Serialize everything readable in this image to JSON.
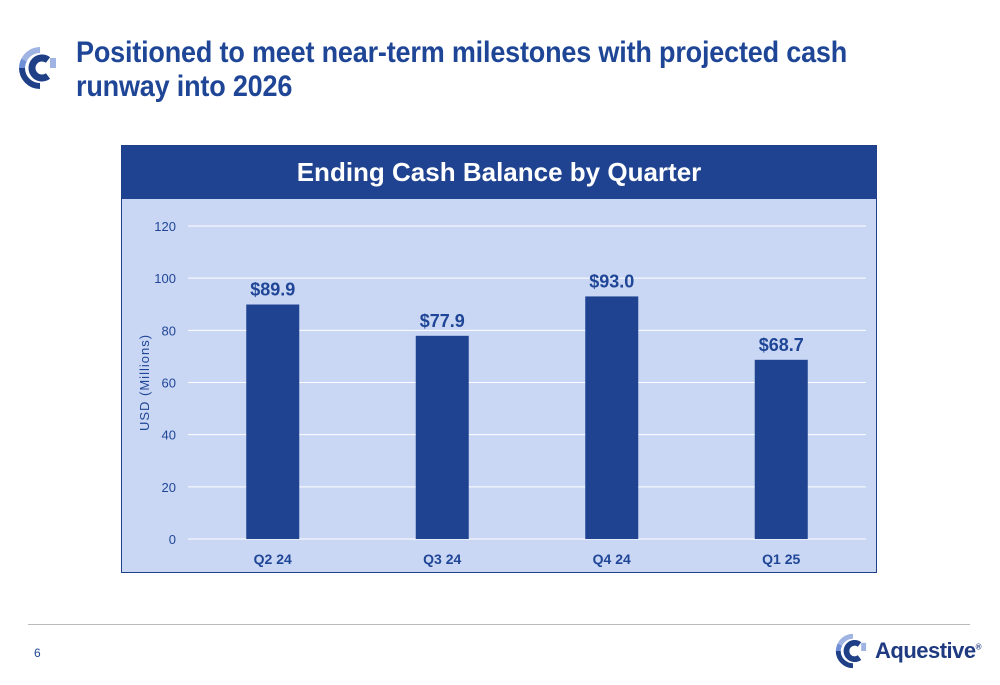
{
  "slide": {
    "title": "Positioned to meet near-term milestones with projected cash runway into 2026",
    "page_number": "6"
  },
  "brand": {
    "name": "Aquestive",
    "registered_mark": "®",
    "logo_icon": "aquestive-logo-icon"
  },
  "colors": {
    "title": "#1f4696",
    "header_band": "#1f4390",
    "plot_background": "#c9d6f4",
    "bar": "#1f4390",
    "data_label": "#1f4696",
    "axis_text": "#1f4696",
    "logo_light": "#9fb4e3",
    "logo_dark": "#1f3f87"
  },
  "chart_data": {
    "type": "bar",
    "title": "Ending Cash Balance by Quarter",
    "xlabel": "",
    "ylabel": "USD (Millions)",
    "categories": [
      "Q2 24",
      "Q3 24",
      "Q4 24",
      "Q1 25"
    ],
    "values": [
      89.9,
      77.9,
      93.0,
      68.7
    ],
    "data_labels": [
      "$89.9",
      "$77.9",
      "$93.0",
      "$68.7"
    ],
    "ylim": [
      0,
      120
    ],
    "yticks": [
      0,
      20,
      40,
      60,
      80,
      100,
      120
    ],
    "grid": true,
    "legend": "none"
  }
}
